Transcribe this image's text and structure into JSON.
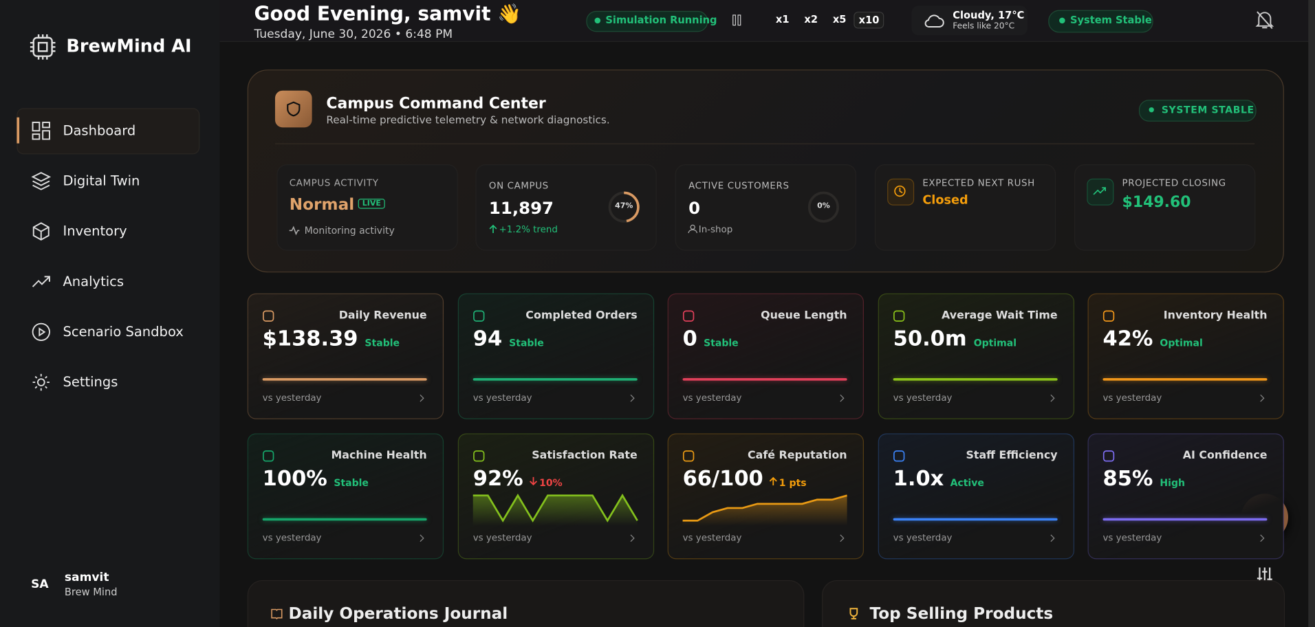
{
  "sidebar": {
    "brand": "BrewMind AI",
    "nav": [
      "Dashboard",
      "Digital Twin",
      "Inventory",
      "Analytics",
      "Scenario Sandbox",
      "Settings"
    ],
    "user": {
      "initials": "SA",
      "name": "samvit",
      "org": "Brew Mind"
    }
  },
  "header": {
    "greeting": "Good Evening, samvit 👋",
    "date": "Tuesday, June 30, 2026 • 6:48 PM",
    "simulation": "Simulation Running",
    "speeds": [
      "x1",
      "x2",
      "x5",
      "x10"
    ],
    "weather": {
      "summary": "Cloudy, 17°C",
      "feels": "Feels like 20°C"
    },
    "status": "System Stable"
  },
  "command_center": {
    "title": "Campus Command Center",
    "subtitle": "Real-time predictive telemetry & network diagnostics.",
    "badge": "SYSTEM STABLE",
    "stats": [
      {
        "label": "CAMPUS ACTIVITY",
        "value": "Normal",
        "tag": "LIVE",
        "note": "Monitoring activity"
      },
      {
        "label": "ON CAMPUS",
        "value": "11,897",
        "note": "+1.2% trend",
        "gauge": 47,
        "gauge_label": "47%"
      },
      {
        "label": "ACTIVE CUSTOMERS",
        "value": "0",
        "note": "In-shop",
        "gauge": 0,
        "gauge_label": "0%"
      },
      {
        "label": "EXPECTED NEXT RUSH",
        "value": "Closed"
      },
      {
        "label": "PROJECTED CLOSING",
        "value": "$149.60"
      }
    ]
  },
  "kpis": [
    {
      "title": "Daily Revenue",
      "value": "$138.39",
      "status": "Stable",
      "footer": "vs yesterday",
      "color": "#d99a63",
      "status_color": "#22c079"
    },
    {
      "title": "Completed Orders",
      "value": "94",
      "status": "Stable",
      "footer": "vs yesterday",
      "color": "#1fae74",
      "status_color": "#22c079"
    },
    {
      "title": "Queue Length",
      "value": "0",
      "status": "Stable",
      "footer": "vs yesterday",
      "color": "#e0405a",
      "status_color": "#22c079"
    },
    {
      "title": "Average Wait Time",
      "value": "50.0m",
      "status": "Optimal",
      "footer": "vs yesterday",
      "color": "#8bc21a",
      "status_color": "#22c079"
    },
    {
      "title": "Inventory Health",
      "value": "42%",
      "status": "Optimal",
      "footer": "vs yesterday",
      "color": "#f0961a",
      "status_color": "#22c079"
    },
    {
      "title": "Machine Health",
      "value": "100%",
      "status": "Stable",
      "footer": "vs yesterday",
      "color": "#16a56a",
      "status_color": "#22c079"
    },
    {
      "title": "Satisfaction Rate",
      "value": "92%",
      "status": "10%",
      "footer": "vs yesterday",
      "color": "#84c11d",
      "status_color": "#ef4444",
      "spark": [
        95,
        95,
        88,
        95,
        88,
        95,
        95,
        95,
        95,
        88,
        95,
        88
      ]
    },
    {
      "title": "Café Reputation",
      "value": "66/100",
      "status": "1 pts",
      "footer": "vs yesterday",
      "color": "#e99a14",
      "status_color": "#f59e0b",
      "spark": [
        60,
        60,
        62,
        63,
        63,
        64,
        64,
        64,
        64,
        65,
        65,
        66
      ]
    },
    {
      "title": "Staff Efficiency",
      "value": "1.0x",
      "status": "Active",
      "footer": "vs yesterday",
      "color": "#3b82f6",
      "status_color": "#22c079"
    },
    {
      "title": "AI Confidence",
      "value": "85%",
      "status": "High",
      "footer": "vs yesterday",
      "color": "#7c6cf0",
      "status_color": "#22c079"
    }
  ],
  "sections": [
    "Daily Operations Journal",
    "Top Selling Products"
  ]
}
